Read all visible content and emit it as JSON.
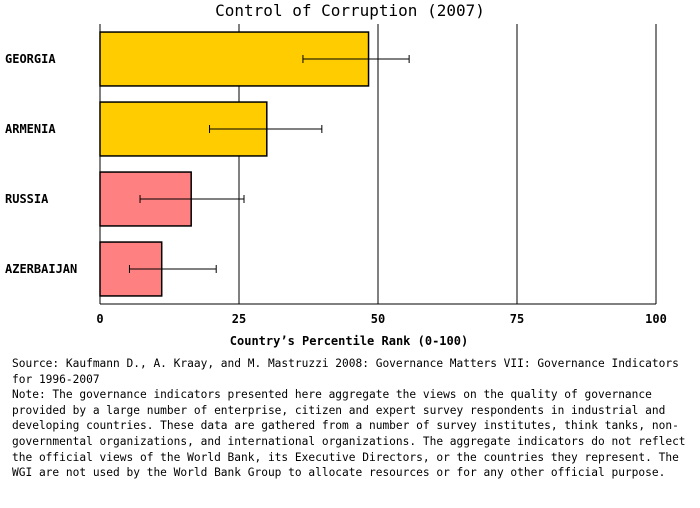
{
  "chart_data": {
    "type": "bar",
    "orientation": "horizontal",
    "title": "Control of Corruption (2007)",
    "xlabel": "Country’s Percentile Rank (0-100)",
    "ylabel": "",
    "xlim": [
      0,
      100
    ],
    "xticks": [
      "0",
      "25",
      "50",
      "75",
      "100"
    ],
    "grid": true,
    "categories": [
      "GEORGIA",
      "ARMENIA",
      "RUSSIA",
      "AZERBAIJAN"
    ],
    "values": [
      48.3,
      30.0,
      16.4,
      11.1
    ],
    "error_low": [
      36.5,
      19.7,
      7.2,
      5.3
    ],
    "error_high": [
      55.6,
      39.9,
      25.9,
      20.9
    ],
    "colors": [
      "#ffcc00",
      "#ffcc00",
      "#ff8080",
      "#ff8080"
    ]
  },
  "notes": {
    "source": "Source: Kaufmann D., A. Kraay, and M. Mastruzzi 2008: Governance Matters VII: Governance Indicators for 1996-2007",
    "note": "Note: The governance indicators presented here aggregate the views on the quality of governance provided by a large number of enterprise, citizen and expert survey respondents in industrial and developing countries. These data are gathered from a number of survey institutes, think tanks, non-governmental organizations, and international organizations. The aggregate indicators do not reflect the official views of the World Bank, its Executive Directors, or the countries they represent. The WGI are not used by the World Bank Group to allocate resources or for any other official purpose."
  }
}
